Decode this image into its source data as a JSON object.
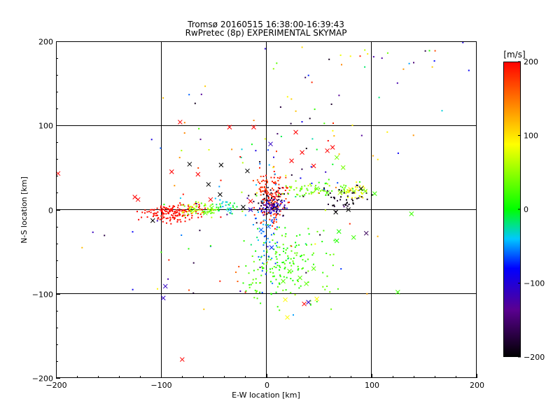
{
  "chart_data": {
    "type": "scatter",
    "title": "Tromsø 20160515 16:38:00-16:39:43",
    "subtitle": "RwPretec (8p) EXPERIMENTAL SKYMAP",
    "xlabel": "E-W location [km]",
    "ylabel": "N-S location [km]",
    "xlim": [
      -200,
      200
    ],
    "ylim": [
      -200,
      200
    ],
    "xticks": [
      -200,
      -100,
      0,
      100,
      200
    ],
    "yticks": [
      -200,
      -100,
      0,
      100,
      200
    ],
    "grid": true,
    "colorbar": {
      "label": "[m/s]",
      "range": [
        -200,
        200
      ],
      "ticks": [
        200,
        100,
        0,
        -100,
        -200
      ],
      "colormap": [
        "#000000",
        "#5a0090",
        "#0000ff",
        "#00c8ff",
        "#00ff00",
        "#ffff00",
        "#ff0000"
      ]
    },
    "clusters": [
      {
        "cx": -87,
        "cy": -4,
        "sx": 15,
        "sy": 5,
        "n": 170,
        "vmin": 190,
        "vmax": 200
      },
      {
        "cx": -62,
        "cy": 1,
        "sx": 10,
        "sy": 4,
        "n": 65,
        "vmin": 20,
        "vmax": 90
      },
      {
        "cx": -40,
        "cy": 4,
        "sx": 8,
        "sy": 4,
        "n": 30,
        "vmin": -50,
        "vmax": 20
      },
      {
        "cx": 4,
        "cy": 12,
        "sx": 7,
        "sy": 15,
        "n": 150,
        "vmin": 165,
        "vmax": 200
      },
      {
        "cx": 6,
        "cy": 4,
        "sx": 6,
        "sy": 5,
        "n": 60,
        "vmin": -130,
        "vmax": -90
      },
      {
        "cx": 4,
        "cy": 10,
        "sx": 7,
        "sy": 10,
        "n": 45,
        "vmin": -200,
        "vmax": -170
      },
      {
        "cx": 52,
        "cy": 24,
        "sx": 22,
        "sy": 4,
        "n": 70,
        "vmin": 10,
        "vmax": 60
      },
      {
        "cx": 75,
        "cy": 14,
        "sx": 12,
        "sy": 7,
        "n": 45,
        "vmin": -200,
        "vmax": -180
      },
      {
        "cx": 88,
        "cy": 22,
        "sx": 7,
        "sy": 5,
        "n": 25,
        "vmin": 60,
        "vmax": 110
      },
      {
        "cx": 20,
        "cy": -65,
        "sx": 22,
        "sy": 20,
        "n": 170,
        "vmin": 0,
        "vmax": 40
      },
      {
        "cx": 0,
        "cy": -35,
        "sx": 5,
        "sy": 25,
        "n": 45,
        "vmin": -70,
        "vmax": -40
      },
      {
        "cx": 5,
        "cy": 70,
        "sx": 55,
        "sy": 40,
        "n": 90,
        "vmin": -200,
        "vmax": 200
      },
      {
        "cx": 100,
        "cy": 170,
        "sx": 70,
        "sy": 25,
        "n": 45,
        "vmin": -200,
        "vmax": 200
      },
      {
        "cx": -40,
        "cy": -50,
        "sx": 60,
        "sy": 40,
        "n": 60,
        "vmin": -200,
        "vmax": 200
      }
    ],
    "x_markers": [
      {
        "x": -82,
        "y": 104,
        "v": 200
      },
      {
        "x": -80,
        "y": -178,
        "v": 200
      },
      {
        "x": -98,
        "y": -105,
        "v": -110
      },
      {
        "x": -96,
        "y": -91,
        "v": -110
      },
      {
        "x": -125,
        "y": 15,
        "v": 200
      },
      {
        "x": -122,
        "y": 12,
        "v": 200
      },
      {
        "x": -108,
        "y": -13,
        "v": -200
      },
      {
        "x": -65,
        "y": 42,
        "v": 200
      },
      {
        "x": -73,
        "y": 54,
        "v": -200
      },
      {
        "x": -90,
        "y": 45,
        "v": 200
      },
      {
        "x": -43,
        "y": 53,
        "v": -200
      },
      {
        "x": -18,
        "y": 46,
        "v": -200
      },
      {
        "x": -35,
        "y": 98,
        "v": 200
      },
      {
        "x": -12,
        "y": 98,
        "v": 200
      },
      {
        "x": 28,
        "y": 92,
        "v": 200
      },
      {
        "x": 4,
        "y": 78,
        "v": -110
      },
      {
        "x": 24,
        "y": 58,
        "v": 200
      },
      {
        "x": 34,
        "y": 68,
        "v": 200
      },
      {
        "x": 58,
        "y": 70,
        "v": 200
      },
      {
        "x": 63,
        "y": 74,
        "v": 200
      },
      {
        "x": 45,
        "y": 52,
        "v": 200
      },
      {
        "x": 67,
        "y": 62,
        "v": 40
      },
      {
        "x": 73,
        "y": 50,
        "v": 40
      },
      {
        "x": 80,
        "y": 24,
        "v": 100
      },
      {
        "x": 90,
        "y": 25,
        "v": -200
      },
      {
        "x": 70,
        "y": 20,
        "v": 60
      },
      {
        "x": 58,
        "y": 20,
        "v": 30
      },
      {
        "x": 48,
        "y": 25,
        "v": 30
      },
      {
        "x": 94,
        "y": 22,
        "v": 40
      },
      {
        "x": 103,
        "y": 19,
        "v": 20
      },
      {
        "x": 78,
        "y": 0,
        "v": -200
      },
      {
        "x": 66,
        "y": -3,
        "v": -200
      },
      {
        "x": 95,
        "y": -28,
        "v": -160
      },
      {
        "x": 83,
        "y": -33,
        "v": 20
      },
      {
        "x": 69,
        "y": -26,
        "v": 10
      },
      {
        "x": 67,
        "y": -37,
        "v": 10
      },
      {
        "x": 125,
        "y": -98,
        "v": 20
      },
      {
        "x": 138,
        "y": -5,
        "v": 20
      },
      {
        "x": 36,
        "y": -112,
        "v": 200
      },
      {
        "x": 40,
        "y": -110,
        "v": -110
      },
      {
        "x": 48,
        "y": -106,
        "v": 90
      },
      {
        "x": 18,
        "y": -107,
        "v": 90
      },
      {
        "x": 20,
        "y": -128,
        "v": 90
      },
      {
        "x": 32,
        "y": -81,
        "v": 30
      },
      {
        "x": 22,
        "y": -73,
        "v": 30
      },
      {
        "x": 16,
        "y": -85,
        "v": 30
      },
      {
        "x": 38,
        "y": -88,
        "v": 30
      },
      {
        "x": 45,
        "y": -70,
        "v": 30
      },
      {
        "x": 5,
        "y": -45,
        "v": -70
      },
      {
        "x": -5,
        "y": -24,
        "v": -60
      },
      {
        "x": 2,
        "y": -20,
        "v": -60
      },
      {
        "x": 8,
        "y": 14,
        "v": 200
      },
      {
        "x": -15,
        "y": 10,
        "v": 200
      },
      {
        "x": -22,
        "y": 3,
        "v": -200
      },
      {
        "x": -15,
        "y": 0,
        "v": -110
      },
      {
        "x": -35,
        "y": 0,
        "v": -40
      },
      {
        "x": -52,
        "y": 2,
        "v": 30
      },
      {
        "x": -58,
        "y": -4,
        "v": 30
      },
      {
        "x": -44,
        "y": 18,
        "v": -200
      },
      {
        "x": -53,
        "y": 12,
        "v": 200
      },
      {
        "x": -198,
        "y": 43,
        "v": 200
      },
      {
        "x": -55,
        "y": 30,
        "v": -200
      }
    ]
  }
}
